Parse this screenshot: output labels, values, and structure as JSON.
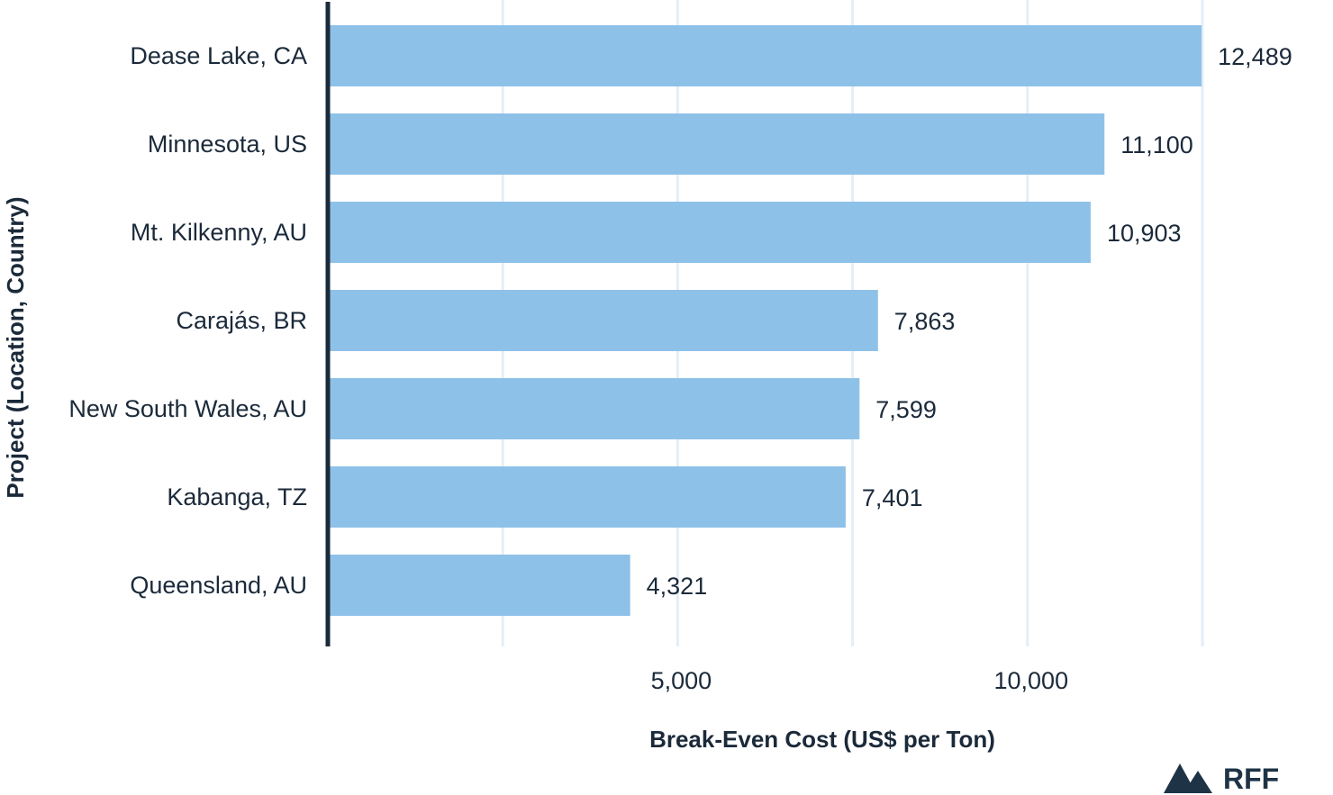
{
  "chart_data": {
    "type": "bar",
    "orientation": "horizontal",
    "categories": [
      "Dease Lake, CA",
      "Minnesota, US",
      "Mt. Kilkenny, AU",
      "Carajás, BR",
      "New South Wales, AU",
      "Kabanga, TZ",
      "Queensland, AU"
    ],
    "values": [
      12489,
      11100,
      10903,
      7863,
      7599,
      7401,
      4321
    ],
    "value_labels": [
      "12,489",
      "11,100",
      "10,903",
      "7,863",
      "7,599",
      "7,401",
      "4,321"
    ],
    "xlabel": "Break-Even Cost (US$ per Ton)",
    "ylabel": "Project (Location, Country)",
    "xlim": [
      0,
      12500
    ],
    "x_gridlines": [
      2500,
      5000,
      7500,
      10000,
      12500
    ],
    "x_ticks": [
      5000,
      10000
    ],
    "x_tick_labels": [
      "5,000",
      "10,000"
    ],
    "grid": true,
    "legend": "none",
    "bar_color": "#8ec1e8",
    "grid_color": "#e3eef8",
    "axis_color": "#1b2a3a"
  },
  "logo": {
    "text": "RFF",
    "color": "#1e3346"
  }
}
